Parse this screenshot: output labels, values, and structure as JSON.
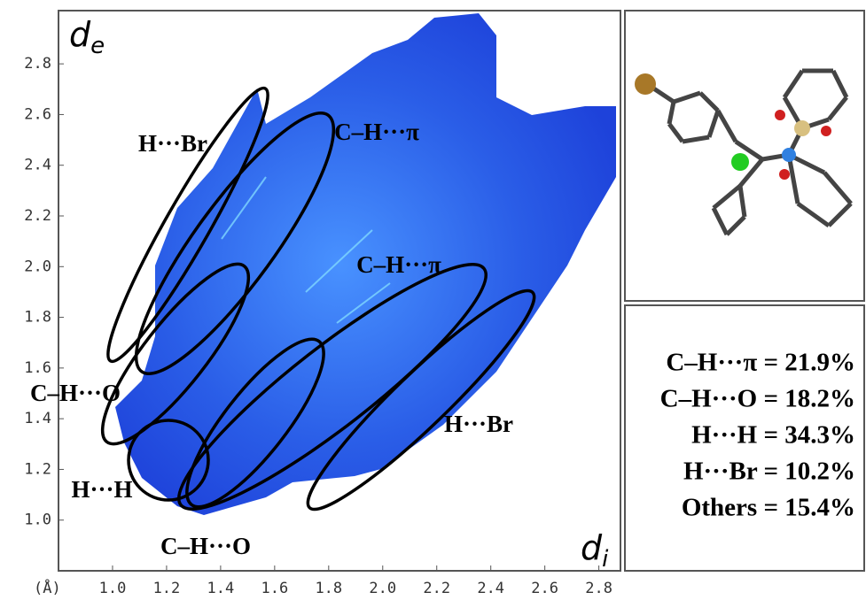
{
  "chart_data": {
    "type": "fingerprint",
    "x_label": {
      "main": "d",
      "sub": "i"
    },
    "y_label": {
      "main": "d",
      "sub": "e"
    },
    "unit": "(Å)",
    "xlim": [
      0.8,
      2.88
    ],
    "ylim": [
      0.8,
      3.01
    ],
    "xticks": [
      {
        "value": 1.0,
        "label": "1.0"
      },
      {
        "value": 1.2,
        "label": "1.2"
      },
      {
        "value": 1.4,
        "label": "1.4"
      },
      {
        "value": 1.6,
        "label": "1.6"
      },
      {
        "value": 1.8,
        "label": "1.8"
      },
      {
        "value": 2.0,
        "label": "2.0"
      },
      {
        "value": 2.2,
        "label": "2.2"
      },
      {
        "value": 2.4,
        "label": "2.4"
      },
      {
        "value": 2.6,
        "label": "2.6"
      },
      {
        "value": 2.8,
        "label": "2.8"
      }
    ],
    "yticks": [
      {
        "value": 1.0,
        "label": "1.0"
      },
      {
        "value": 1.2,
        "label": "1.2"
      },
      {
        "value": 1.4,
        "label": "1.4"
      },
      {
        "value": 1.6,
        "label": "1.6"
      },
      {
        "value": 1.8,
        "label": "1.8"
      },
      {
        "value": 2.0,
        "label": "2.0"
      },
      {
        "value": 2.2,
        "label": "2.2"
      },
      {
        "value": 2.4,
        "label": "2.4"
      },
      {
        "value": 2.6,
        "label": "2.6"
      },
      {
        "value": 2.8,
        "label": "2.8"
      }
    ],
    "annotations": [
      "H···Br",
      "C–H···π",
      "C–H···π",
      "C–H···O",
      "H···Br",
      "H···H",
      "C–H···O"
    ],
    "contributions": [
      "C–H···π = 21.9%",
      "C–H···O = 18.2%",
      "H···H = 34.3%",
      "H···Br = 10.2%",
      "Others = 15.4%"
    ]
  }
}
